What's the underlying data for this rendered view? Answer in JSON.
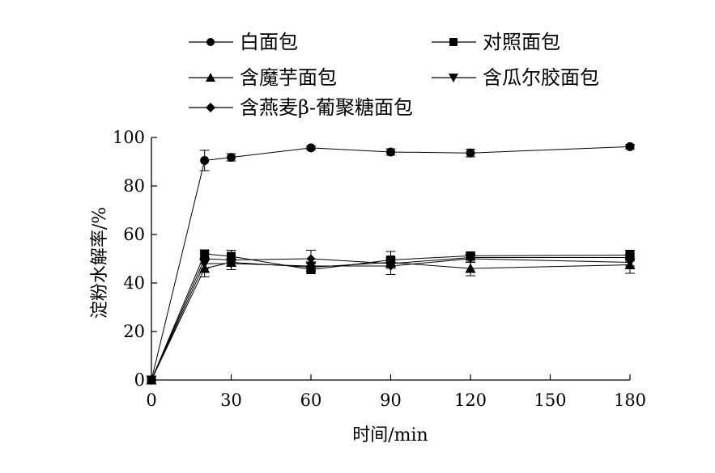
{
  "chart_data": {
    "type": "line",
    "xlabel": "时间/min",
    "ylabel": "淀粉水解率/%",
    "xlim": [
      0,
      180
    ],
    "ylim": [
      0,
      100
    ],
    "xticks": [
      "0",
      "30",
      "60",
      "90",
      "120",
      "150",
      "180"
    ],
    "yticks": [
      "0",
      "20",
      "40",
      "60",
      "80",
      "100"
    ],
    "x": [
      0,
      20,
      30,
      60,
      90,
      120,
      180
    ],
    "grid": false,
    "legend_position": "top",
    "series": [
      {
        "name": "白面包",
        "marker": "circle",
        "values": [
          0,
          90.5,
          91.8,
          95.7,
          94.0,
          93.6,
          96.2
        ],
        "errors": [
          0,
          4.2,
          1.5,
          0.8,
          1.3,
          1.6,
          0.9
        ]
      },
      {
        "name": "对照面包",
        "marker": "square",
        "values": [
          0,
          52.0,
          51.0,
          45.5,
          49.5,
          51.2,
          51.5
        ],
        "errors": [
          0,
          1.5,
          2.5,
          1.5,
          3.5,
          1.5,
          2.0
        ]
      },
      {
        "name": "含魔芋面包",
        "marker": "triangle-up",
        "values": [
          0,
          46.0,
          48.5,
          46.5,
          48.5,
          46.0,
          47.5
        ],
        "errors": [
          0,
          3.5,
          1.5,
          1.5,
          1.5,
          3.0,
          3.5
        ]
      },
      {
        "name": "含瓜尔胶面包",
        "marker": "triangle-down",
        "values": [
          0,
          48.0,
          48.0,
          47.0,
          47.0,
          50.0,
          48.5
        ],
        "errors": [
          0,
          2.0,
          1.0,
          1.0,
          3.5,
          1.5,
          1.5
        ]
      },
      {
        "name": "含燕麦β-葡聚糖面包",
        "marker": "diamond",
        "values": [
          0,
          50.0,
          49.5,
          50.0,
          48.0,
          50.5,
          50.5
        ],
        "errors": [
          0,
          2.0,
          4.0,
          3.5,
          1.5,
          1.5,
          1.5
        ]
      }
    ]
  }
}
